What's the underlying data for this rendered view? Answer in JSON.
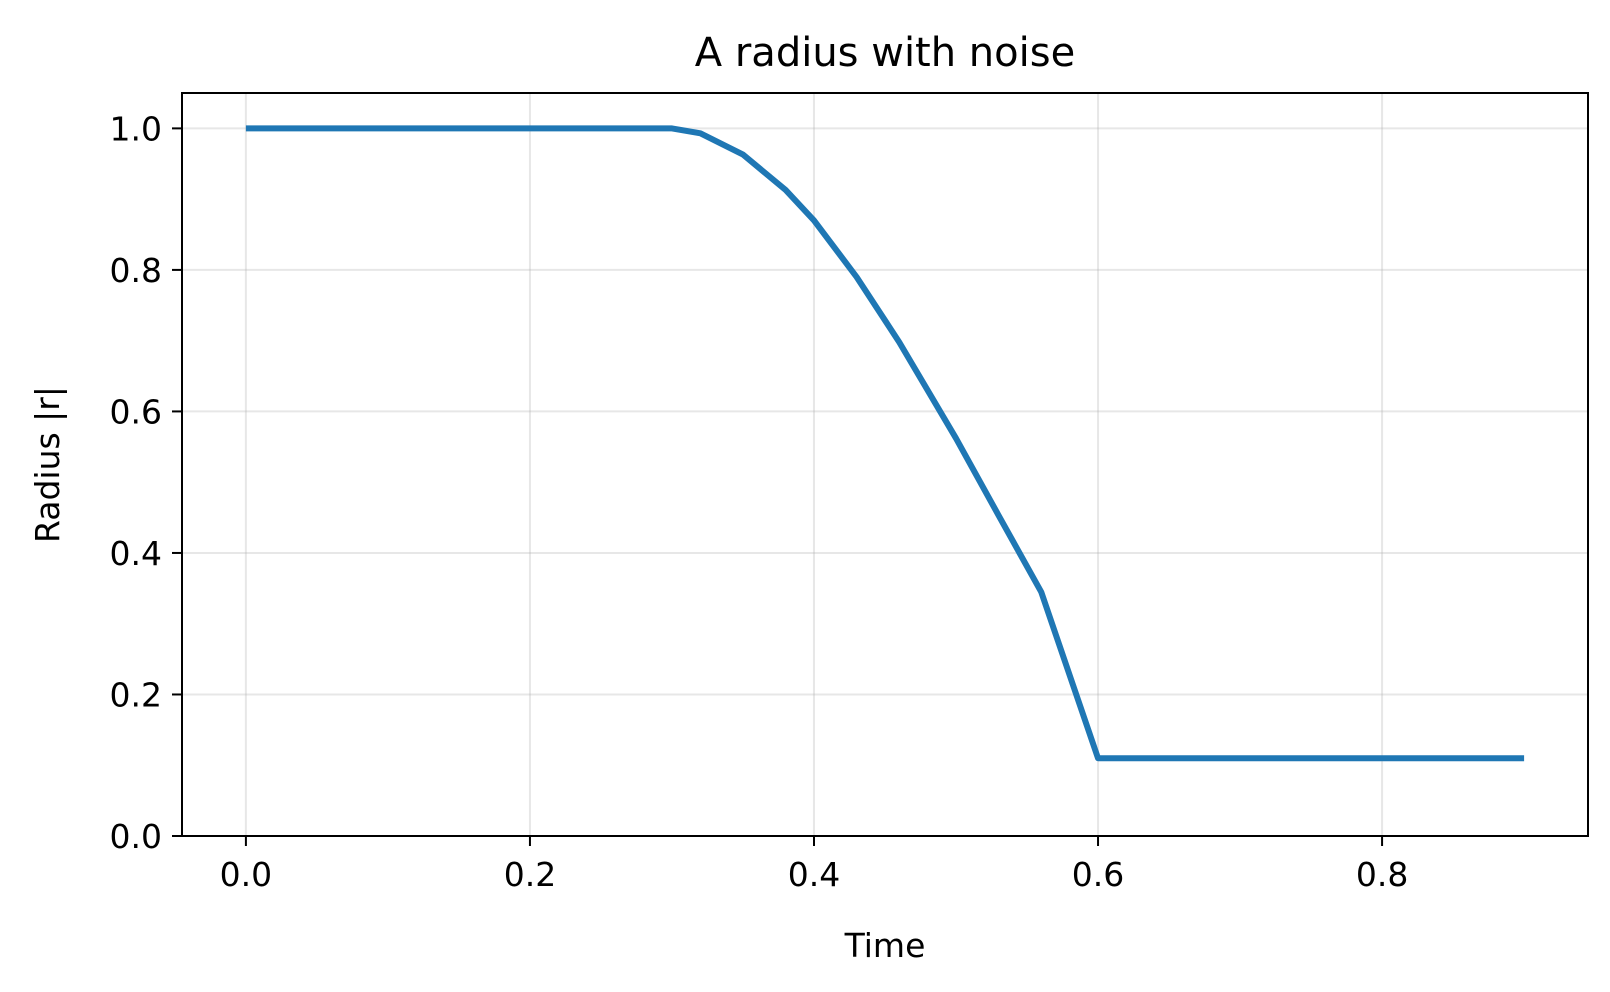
{
  "chart_data": {
    "type": "line",
    "title": "A radius with noise",
    "xlabel": "Time",
    "ylabel": "Radius |r|",
    "xlim": [
      -0.045,
      0.945
    ],
    "ylim": [
      0.0,
      1.05
    ],
    "xticks": [
      0.0,
      0.2,
      0.4,
      0.6,
      0.8
    ],
    "xtick_labels": [
      "0.0",
      "0.2",
      "0.4",
      "0.6",
      "0.8"
    ],
    "yticks": [
      0.0,
      0.2,
      0.4,
      0.6,
      0.8,
      1.0
    ],
    "ytick_labels": [
      "0.0",
      "0.2",
      "0.4",
      "0.6",
      "0.8",
      "1.0"
    ],
    "grid": true,
    "series": [
      {
        "color": "#1f77b4",
        "x": [
          0.0,
          0.1,
          0.2,
          0.3,
          0.32,
          0.35,
          0.38,
          0.4,
          0.43,
          0.46,
          0.5,
          0.53,
          0.56,
          0.6,
          0.7,
          0.8,
          0.9
        ],
        "y": [
          1.0,
          1.0,
          1.0,
          1.0,
          0.993,
          0.963,
          0.913,
          0.87,
          0.79,
          0.698,
          0.562,
          0.453,
          0.345,
          0.11,
          0.11,
          0.11,
          0.11
        ]
      }
    ]
  }
}
